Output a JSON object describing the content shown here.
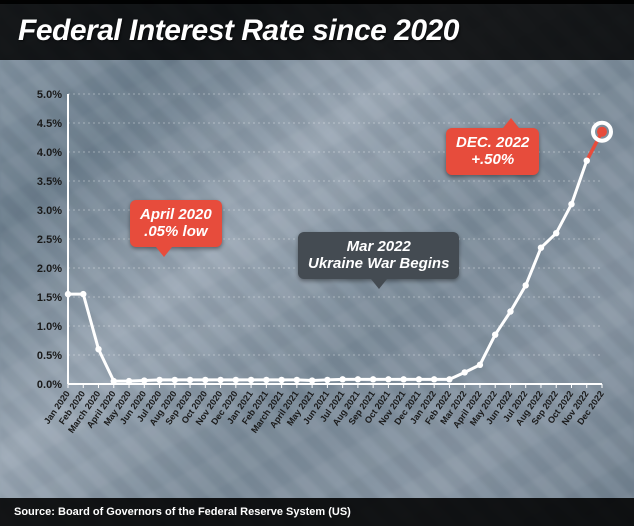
{
  "title": "Federal Interest Rate since 2020",
  "source_label": "Source: Board of Governors of the Federal Reserve System (US)",
  "chart": {
    "type": "line",
    "ylim": [
      0,
      5.0
    ],
    "ytick_step": 0.5,
    "y_suffix": "%",
    "background_color": "transparent",
    "axis_color": "#ffffff",
    "grid_color": "rgba(255,255,255,0.35)",
    "line_color": "#ffffff",
    "line_width": 3,
    "accent_color": "#e74c3c",
    "marker_color": "#ffffff",
    "marker_radius": 3.2,
    "end_marker_radius_inner": 5,
    "end_marker_radius_outer": 9,
    "title_fontsize": 30,
    "label_fontsize": 11,
    "xtick_fontsize": 9,
    "categories": [
      "Jan 2020",
      "Feb 2020",
      "March 2020",
      "April 2020",
      "May 2020",
      "Jun 2020",
      "Jul 2020",
      "Aug 2020",
      "Sep 2020",
      "Oct 2020",
      "Nov 2020",
      "Dec 2020",
      "Jan 2021",
      "Feb 2021",
      "March 2021",
      "April 2021",
      "May 2021",
      "Jun 2021",
      "Jul 2021",
      "Aug 2021",
      "Sep 2021",
      "Oct 2021",
      "Nov 2021",
      "Dec 2021",
      "Jan 2022",
      "Feb 2022",
      "Mar 2022",
      "April 2022",
      "May 2022",
      "Jun 2022",
      "Jul 2022",
      "Aug 2022",
      "Sep 2022",
      "Oct 2022",
      "Nov 2022",
      "Dec 2022"
    ],
    "values": [
      1.55,
      1.55,
      0.6,
      0.05,
      0.05,
      0.06,
      0.07,
      0.07,
      0.07,
      0.07,
      0.07,
      0.07,
      0.07,
      0.07,
      0.07,
      0.07,
      0.06,
      0.07,
      0.08,
      0.08,
      0.08,
      0.08,
      0.08,
      0.08,
      0.08,
      0.08,
      0.2,
      0.33,
      0.85,
      1.25,
      1.7,
      2.35,
      2.6,
      3.1,
      3.85,
      4.35
    ],
    "accent_from_index": 34
  },
  "callouts": {
    "april2020": {
      "line1": "April 2020",
      "line2": ".05% low",
      "bg": "#e74c3c"
    },
    "mar2022": {
      "line1": "Mar 2022",
      "line2": "Ukraine War Begins",
      "bg": "#444b52"
    },
    "dec2022": {
      "line1": "DEC. 2022",
      "line2": "+.50%",
      "bg": "#e74c3c"
    }
  }
}
